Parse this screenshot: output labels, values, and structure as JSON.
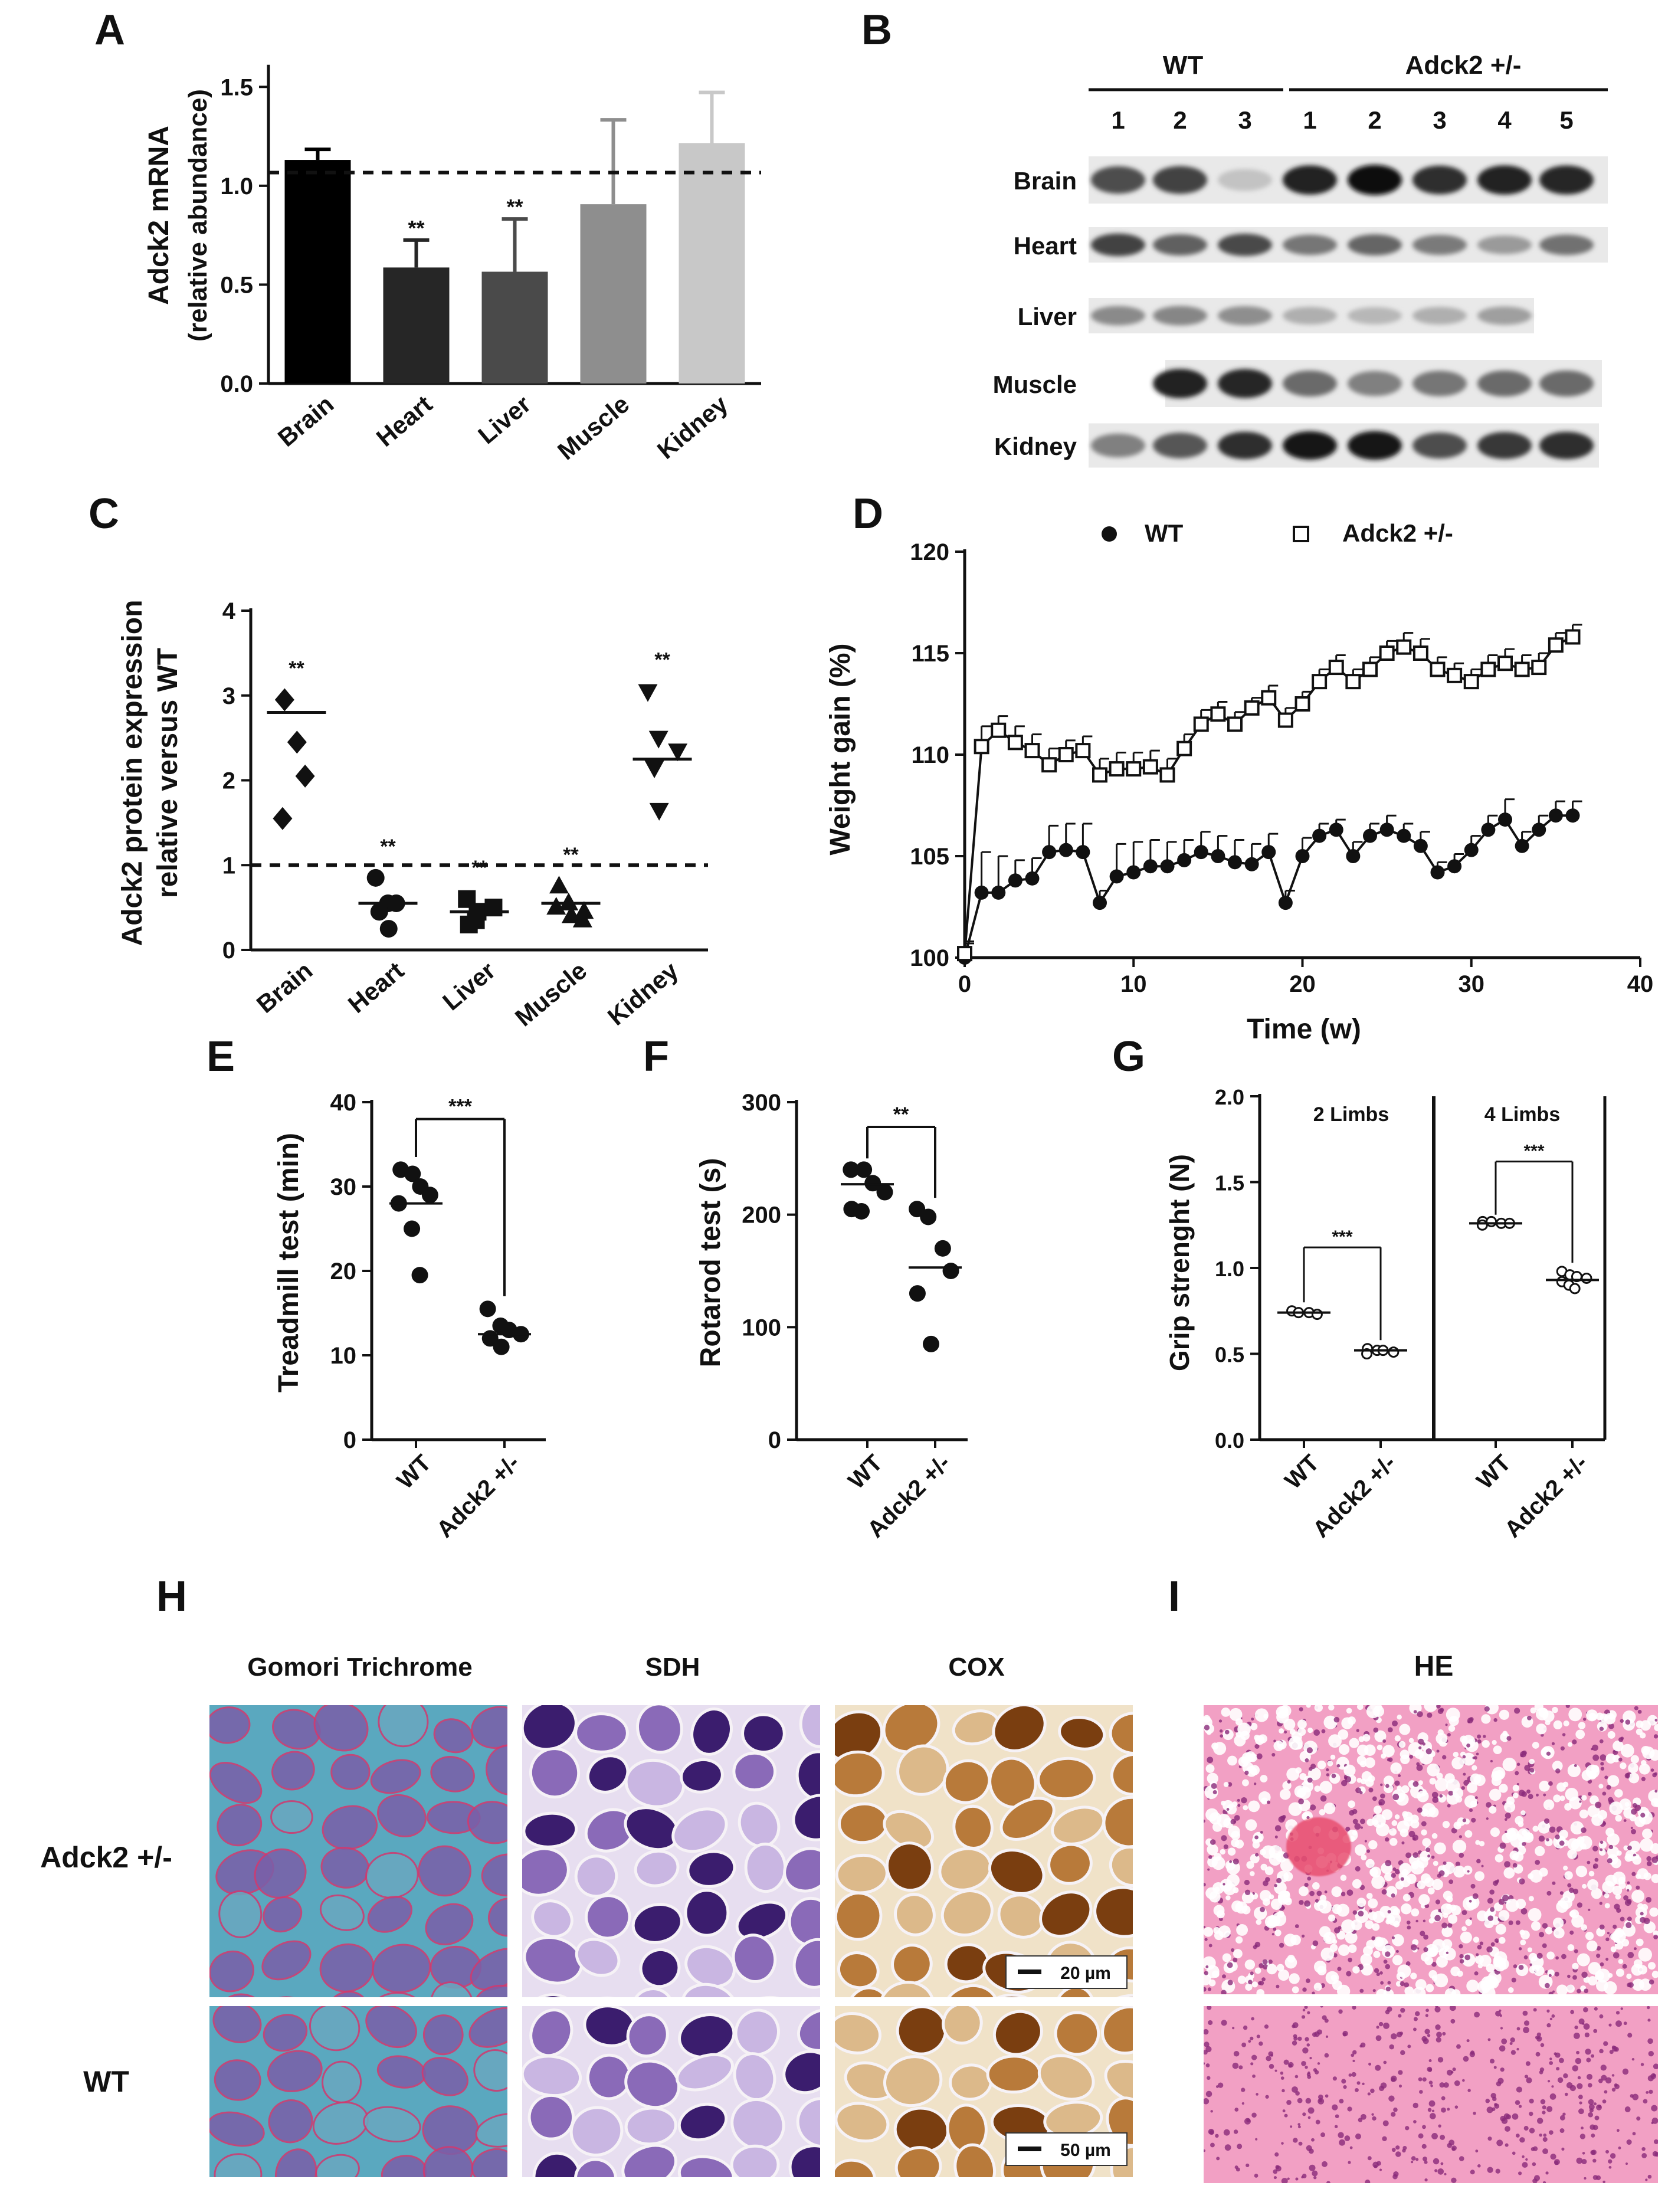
{
  "panels": {
    "A": {
      "letter": "A",
      "ylabel_line1": "Adck2 mRNA",
      "ylabel_line2": "(relative abundance)",
      "chart_data": {
        "type": "bar",
        "categories": [
          "Brain",
          "Heart",
          "Liver",
          "Muscle",
          "Kidney"
        ],
        "values": [
          1.06,
          0.55,
          0.53,
          0.85,
          1.14
        ],
        "errors": [
          0.05,
          0.13,
          0.25,
          0.4,
          0.24
        ],
        "sig": [
          "",
          "**",
          "**",
          "",
          ""
        ],
        "colors": [
          "#000000",
          "#262626",
          "#4a4a4a",
          "#8e8e8e",
          "#c8c8c8"
        ],
        "yticks": [
          "0.0",
          "0.5",
          "1.0",
          "1.5"
        ],
        "ylim": [
          0,
          1.6
        ],
        "reference_line": 1.0
      }
    },
    "B": {
      "letter": "B",
      "groups": [
        "WT",
        "Adck2 +/-"
      ],
      "lanes": [
        "1",
        "2",
        "3",
        "1",
        "2",
        "3",
        "4",
        "5"
      ],
      "tissues": [
        "Brain",
        "Heart",
        "Liver",
        "Muscle",
        "Kidney"
      ],
      "band_intensity": [
        [
          0.7,
          0.75,
          0.12,
          0.9,
          1.0,
          0.85,
          0.9,
          0.88
        ],
        [
          0.75,
          0.6,
          0.72,
          0.5,
          0.58,
          0.48,
          0.32,
          0.52
        ],
        [
          0.4,
          0.42,
          0.38,
          0.22,
          0.18,
          0.22,
          0.3,
          0.0
        ],
        [
          0.0,
          0.9,
          0.88,
          0.55,
          0.45,
          0.5,
          0.55,
          0.55
        ],
        [
          0.45,
          0.65,
          0.85,
          0.95,
          0.98,
          0.7,
          0.8,
          0.85
        ]
      ]
    },
    "C": {
      "letter": "C",
      "ylabel_line1": "Adck2 protein expression",
      "ylabel_line2": "relative versus WT",
      "chart_data": {
        "type": "scatter",
        "categories": [
          "Brain",
          "Heart",
          "Liver",
          "Muscle",
          "Kidney"
        ],
        "points": [
          [
            2.95,
            2.45,
            2.05,
            1.55
          ],
          [
            0.85,
            0.55,
            0.55,
            0.45,
            0.25
          ],
          [
            0.6,
            0.45,
            0.5,
            0.3,
            0.35
          ],
          [
            0.75,
            0.55,
            0.45,
            0.5,
            0.4,
            0.35
          ],
          [
            3.05,
            2.5,
            2.35,
            2.15,
            1.65
          ]
        ],
        "means": [
          2.8,
          0.55,
          0.45,
          0.55,
          2.25
        ],
        "markers": [
          "diamond",
          "circle",
          "square",
          "triangle-up",
          "triangle-down"
        ],
        "sig": [
          "**",
          "**",
          "**",
          "**",
          "**"
        ],
        "yticks": [
          "0",
          "1",
          "2",
          "3",
          "4"
        ],
        "ylim": [
          0,
          4
        ],
        "reference_line": 1
      }
    },
    "D": {
      "letter": "D",
      "ylabel": "Weight gain (%)",
      "xlabel": "Time (w)",
      "legend": [
        "WT",
        "Adck2 +/-"
      ],
      "chart_data": {
        "type": "line",
        "x": [
          0,
          1,
          2,
          3,
          4,
          5,
          6,
          7,
          8,
          9,
          10,
          11,
          12,
          13,
          14,
          15,
          16,
          17,
          18,
          19,
          20,
          21,
          22,
          23,
          24,
          25,
          26,
          27,
          28,
          29,
          30,
          31,
          32,
          33,
          34,
          35,
          36
        ],
        "series": [
          {
            "name": "WT",
            "marker": "circle",
            "values": [
              100,
              103.2,
              103.2,
              103.8,
              103.9,
              105.2,
              105.3,
              105.2,
              102.7,
              104.0,
              104.2,
              104.5,
              104.5,
              104.8,
              105.2,
              105.0,
              104.7,
              104.6,
              105.2,
              102.7,
              105.0,
              106.0,
              106.3,
              105.0,
              106.0,
              106.3,
              106.0,
              105.5,
              104.2,
              104.5,
              105.3,
              106.3,
              106.8,
              105.5,
              106.3,
              107.0,
              107.0
            ],
            "errors": [
              0.8,
              2.0,
              1.8,
              1.0,
              1.0,
              1.3,
              1.3,
              1.4,
              0.6,
              1.6,
              1.5,
              1.3,
              1.2,
              1.0,
              1.0,
              1.0,
              1.1,
              1.0,
              0.9,
              0.6,
              0.9,
              0.6,
              0.5,
              0.7,
              0.6,
              0.7,
              0.6,
              0.7,
              0.5,
              0.6,
              0.7,
              0.7,
              1.0,
              0.7,
              0.7,
              0.7,
              0.7
            ]
          },
          {
            "name": "Adck2 +/-",
            "marker": "square",
            "values": [
              100.2,
              110.4,
              111.2,
              110.6,
              110.2,
              109.5,
              110.0,
              110.2,
              109.0,
              109.3,
              109.3,
              109.4,
              109.0,
              110.3,
              111.5,
              112.0,
              111.5,
              112.3,
              112.8,
              111.7,
              112.5,
              113.6,
              114.3,
              113.6,
              114.2,
              115.0,
              115.3,
              115.0,
              114.2,
              113.9,
              113.6,
              114.2,
              114.5,
              114.2,
              114.3,
              115.4,
              115.8
            ],
            "errors": [
              0.5,
              1.0,
              0.7,
              0.8,
              0.8,
              0.8,
              0.7,
              0.7,
              0.8,
              0.8,
              0.8,
              0.8,
              0.8,
              0.7,
              0.7,
              0.6,
              0.6,
              0.5,
              0.6,
              0.6,
              0.6,
              0.6,
              0.6,
              0.6,
              0.6,
              0.6,
              0.7,
              0.7,
              0.6,
              0.6,
              0.6,
              0.7,
              0.7,
              0.7,
              0.7,
              0.6,
              0.6
            ]
          }
        ],
        "xticks": [
          "0",
          "10",
          "20",
          "30",
          "40"
        ],
        "yticks": [
          "100",
          "105",
          "110",
          "115",
          "120"
        ],
        "xlim": [
          0,
          40
        ],
        "ylim": [
          100,
          120
        ]
      }
    },
    "E": {
      "letter": "E",
      "ylabel": "Treadmill test (min)",
      "chart_data": {
        "type": "scatter",
        "categories": [
          "WT",
          "Adck2 +/-"
        ],
        "points": [
          [
            32,
            31.5,
            30,
            29,
            28,
            25,
            19.5
          ],
          [
            15.5,
            13.5,
            13,
            12.5,
            12,
            11
          ]
        ],
        "means": [
          28,
          12.5
        ],
        "sig": "***",
        "yticks": [
          "0",
          "10",
          "20",
          "30",
          "40"
        ],
        "ylim": [
          0,
          40
        ]
      }
    },
    "F": {
      "letter": "F",
      "ylabel": "Rotarod test (s)",
      "chart_data": {
        "type": "scatter",
        "categories": [
          "WT",
          "Adck2 +/-"
        ],
        "points": [
          [
            240,
            240,
            228,
            220,
            205,
            203
          ],
          [
            205,
            198,
            170,
            150,
            130,
            85
          ]
        ],
        "means": [
          227,
          153
        ],
        "sig": "**",
        "yticks": [
          "0",
          "100",
          "200",
          "300"
        ],
        "ylim": [
          0,
          300
        ]
      }
    },
    "G": {
      "letter": "G",
      "ylabel": "Grip strenght (N)",
      "subtitles": [
        "2 Limbs",
        "4 Limbs"
      ],
      "chart_data": {
        "type": "scatter",
        "categories": [
          "WT",
          "Adck2 +/-",
          "WT",
          "Adck2 +/-"
        ],
        "points": [
          [
            0.75,
            0.74,
            0.74,
            0.73
          ],
          [
            0.53,
            0.52,
            0.52,
            0.51,
            0.5
          ],
          [
            1.27,
            1.27,
            1.26,
            1.26,
            1.25
          ],
          [
            0.98,
            0.96,
            0.95,
            0.94,
            0.92,
            0.9,
            0.88
          ]
        ],
        "means": [
          0.74,
          0.52,
          1.26,
          0.93
        ],
        "sig": [
          "***",
          "***"
        ],
        "yticks": [
          "0.0",
          "0.5",
          "1.0",
          "1.5",
          "2.0"
        ],
        "ylim": [
          0,
          2
        ]
      }
    },
    "H": {
      "letter": "H",
      "columns": [
        "Gomori Trichrome",
        "SDH",
        "COX"
      ],
      "rows": [
        "Adck2 +/-",
        "WT"
      ],
      "scalebars": [
        "20 µm",
        "50 µm"
      ]
    },
    "I": {
      "letter": "I",
      "columns": [
        "HE"
      ]
    }
  },
  "colors": {
    "gomori_bg": "#5aa8bf",
    "gomori_fiber": "#7a5fa8",
    "gomori_edge": "#d2386e",
    "sdh_bg": "#e7def0",
    "sdh_dark": "#3b1d6e",
    "cox_bg": "#f0e2c8",
    "cox_dark": "#7a3e10",
    "he_bg": "#f2a0c4",
    "he_nucleus": "#8a2a7a"
  }
}
